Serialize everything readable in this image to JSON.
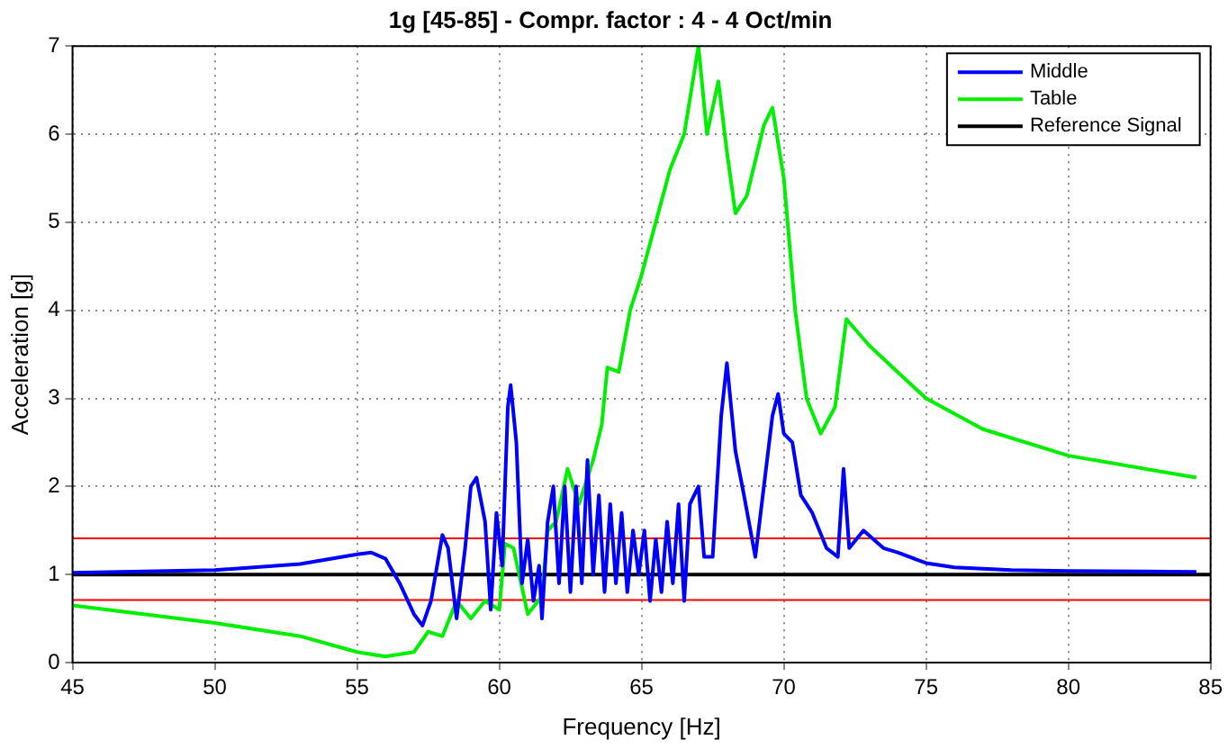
{
  "chart_data": {
    "type": "line",
    "title": "1g [45-85] - Compr. factor : 4 - 4 Oct/min",
    "xlabel": "Frequency [Hz]",
    "ylabel": "Acceleration [g]",
    "xlim": [
      45,
      85
    ],
    "xticks": [
      45,
      50,
      55,
      60,
      65,
      70,
      75,
      80,
      85
    ],
    "ylim": [
      0,
      7
    ],
    "yticks": [
      0,
      1,
      2,
      3,
      4,
      5,
      6,
      7
    ],
    "grid": true,
    "legend": "top right",
    "marker": "none",
    "line_style": "solid",
    "series": [
      {
        "name": "Middle",
        "color": "#0000ff",
        "x": [
          45,
          50,
          53,
          55,
          55.5,
          56,
          56.5,
          57,
          57.3,
          57.6,
          58,
          58.2,
          58.5,
          58.8,
          59,
          59.2,
          59.5,
          59.7,
          59.9,
          60.1,
          60.3,
          60.4,
          60.6,
          60.8,
          61,
          61.2,
          61.4,
          61.5,
          61.7,
          61.9,
          62.1,
          62.3,
          62.5,
          62.7,
          62.9,
          63.1,
          63.3,
          63.5,
          63.7,
          63.9,
          64.1,
          64.3,
          64.5,
          64.7,
          64.9,
          65.1,
          65.3,
          65.5,
          65.7,
          65.9,
          66.1,
          66.3,
          66.5,
          66.7,
          67,
          67.2,
          67.5,
          67.8,
          68,
          68.3,
          68.6,
          69,
          69.3,
          69.6,
          69.8,
          70,
          70.3,
          70.6,
          71,
          71.5,
          71.9,
          72.1,
          72.3,
          72.8,
          73.5,
          74,
          75,
          76,
          78,
          80,
          84.5
        ],
        "values": [
          1.02,
          1.05,
          1.12,
          1.23,
          1.25,
          1.18,
          0.9,
          0.55,
          0.42,
          0.7,
          1.45,
          1.3,
          0.5,
          1.3,
          2.0,
          2.1,
          1.6,
          0.6,
          1.7,
          1.1,
          2.9,
          3.15,
          2.5,
          0.9,
          1.4,
          0.7,
          1.1,
          0.5,
          1.6,
          2.0,
          0.9,
          2.0,
          0.8,
          2.0,
          0.9,
          2.3,
          1.0,
          1.9,
          0.8,
          1.8,
          0.9,
          1.7,
          0.8,
          1.5,
          1.0,
          1.5,
          0.7,
          1.4,
          0.8,
          1.6,
          0.9,
          1.8,
          0.7,
          1.8,
          2.0,
          1.2,
          1.2,
          2.8,
          3.4,
          2.4,
          1.9,
          1.2,
          2.0,
          2.8,
          3.05,
          2.6,
          2.5,
          1.9,
          1.7,
          1.3,
          1.2,
          2.2,
          1.3,
          1.5,
          1.3,
          1.25,
          1.13,
          1.08,
          1.05,
          1.04,
          1.03
        ]
      },
      {
        "name": "Table",
        "color": "#00ee00",
        "x": [
          45,
          50,
          53,
          55,
          56,
          57,
          57.5,
          58,
          58.5,
          59,
          59.5,
          60,
          60.2,
          60.5,
          61,
          61.5,
          61.7,
          62,
          62.4,
          62.8,
          63.3,
          63.6,
          63.8,
          64.2,
          64.6,
          65,
          65.5,
          66,
          66.5,
          67,
          67.3,
          67.7,
          68,
          68.3,
          68.7,
          69.3,
          69.6,
          70,
          70.4,
          70.8,
          71.3,
          71.8,
          72.2,
          73,
          74,
          75,
          77,
          80,
          84.5
        ],
        "values": [
          0.65,
          0.45,
          0.3,
          0.12,
          0.07,
          0.12,
          0.35,
          0.3,
          0.7,
          0.5,
          0.7,
          0.6,
          1.35,
          1.3,
          0.55,
          0.75,
          1.5,
          1.6,
          2.2,
          1.8,
          2.3,
          2.7,
          3.35,
          3.3,
          4.0,
          4.4,
          5.0,
          5.6,
          6.0,
          7.0,
          6.0,
          6.6,
          5.8,
          5.1,
          5.3,
          6.1,
          6.3,
          5.5,
          4.0,
          3.0,
          2.6,
          2.9,
          3.9,
          3.6,
          3.3,
          3.0,
          2.65,
          2.35,
          2.1
        ]
      },
      {
        "name": "Reference Signal",
        "color": "#000000",
        "x": [
          45,
          85
        ],
        "values": [
          1,
          1
        ]
      }
    ],
    "ref_lines": [
      {
        "axis": "y",
        "value": 1.41,
        "color": "#ff0000"
      },
      {
        "axis": "y",
        "value": 0.71,
        "color": "#ff0000"
      }
    ]
  }
}
